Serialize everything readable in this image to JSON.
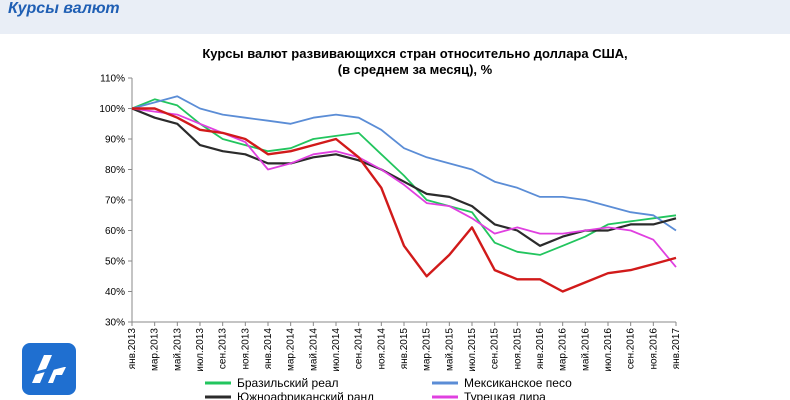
{
  "header": {
    "title": "Курсы валют"
  },
  "chart_data": {
    "type": "line",
    "title": "Курсы валют развивающихся стран относительно доллара США,",
    "subtitle": "(в среднем за месяц), %",
    "xlabel": "",
    "ylabel": "",
    "ylim": [
      30,
      110
    ],
    "yticks": [
      "30%",
      "40%",
      "50%",
      "60%",
      "70%",
      "80%",
      "90%",
      "100%",
      "110%"
    ],
    "categories": [
      "янв.2013",
      "мар.2013",
      "май.2013",
      "июл.2013",
      "сен.2013",
      "ноя.2013",
      "янв.2014",
      "мар.2014",
      "май.2014",
      "июл.2014",
      "сен.2014",
      "ноя.2014",
      "янв.2015",
      "мар.2015",
      "май.2015",
      "июл.2015",
      "сен.2015",
      "ноя.2015",
      "янв.2016",
      "мар.2016",
      "май.2016",
      "июл.2016",
      "сен.2016",
      "ноя.2016",
      "янв.2017"
    ],
    "series": [
      {
        "name": "Бразильский реал",
        "color": "#22c55e",
        "values": [
          100,
          103,
          101,
          95,
          90,
          88,
          86,
          87,
          90,
          91,
          92,
          85,
          78,
          70,
          68,
          66,
          56,
          53,
          52,
          55,
          58,
          62,
          63,
          64,
          65
        ]
      },
      {
        "name": "Мексиканское песо",
        "color": "#5b8dd6",
        "values": [
          100,
          102,
          104,
          100,
          98,
          97,
          96,
          95,
          97,
          98,
          97,
          93,
          87,
          84,
          82,
          80,
          76,
          74,
          71,
          71,
          70,
          68,
          66,
          65,
          60
        ]
      },
      {
        "name": "Южноафриканский ранд",
        "color": "#2b2b2b",
        "values": [
          100,
          97,
          95,
          88,
          86,
          85,
          82,
          82,
          84,
          85,
          83,
          80,
          76,
          72,
          71,
          68,
          62,
          60,
          55,
          58,
          60,
          60,
          62,
          62,
          64
        ]
      },
      {
        "name": "Турецкая лира",
        "color": "#e040e0",
        "values": [
          100,
          99,
          98,
          95,
          92,
          89,
          80,
          82,
          85,
          86,
          84,
          80,
          75,
          69,
          68,
          64,
          59,
          61,
          59,
          59,
          60,
          61,
          60,
          57,
          48
        ]
      },
      {
        "name": "",
        "color": "#d11a1a",
        "values": [
          100,
          100,
          97,
          93,
          92,
          90,
          85,
          86,
          88,
          90,
          84,
          74,
          55,
          45,
          52,
          61,
          47,
          44,
          44,
          40,
          43,
          46,
          47,
          49,
          51
        ]
      }
    ]
  }
}
